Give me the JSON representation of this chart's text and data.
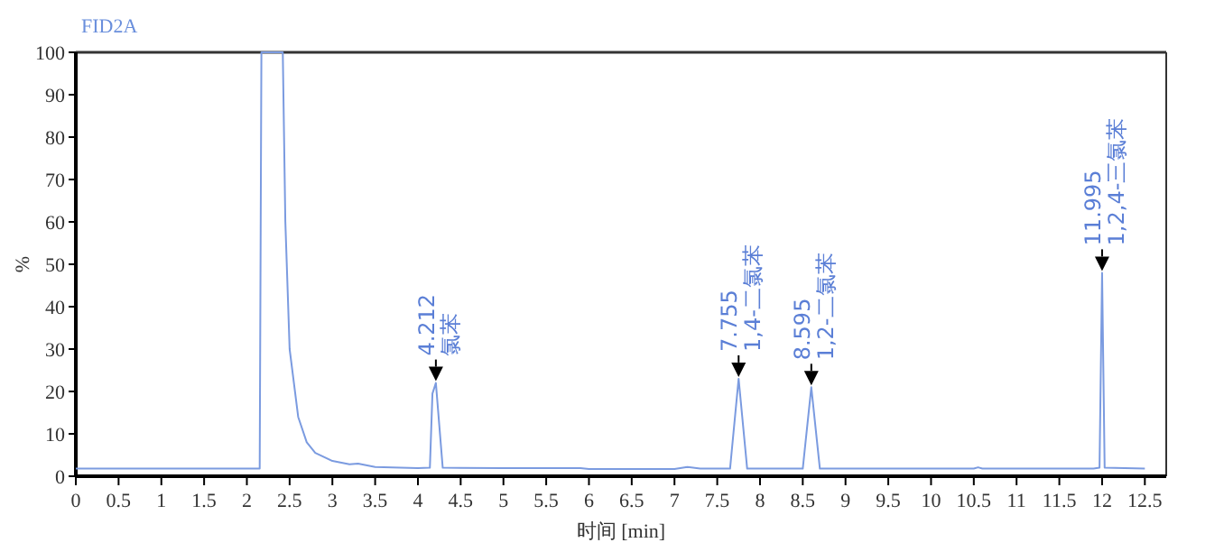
{
  "chart_data": {
    "type": "line",
    "title": "FID2A",
    "xlabel": "时间 [min]",
    "ylabel": "%",
    "xlim": [
      0,
      12.75
    ],
    "ylim": [
      0,
      100
    ],
    "xticks": [
      0,
      0.5,
      1,
      1.5,
      2,
      2.5,
      3,
      3.5,
      4,
      4.5,
      5,
      5.5,
      6,
      6.5,
      7,
      7.5,
      8,
      8.5,
      9,
      9.5,
      10,
      10.5,
      11,
      11.5,
      12,
      12.5
    ],
    "yticks": [
      0,
      10,
      20,
      30,
      40,
      50,
      60,
      70,
      80,
      90,
      100
    ],
    "x": [
      0,
      2.15,
      2.17,
      2.42,
      2.45,
      2.5,
      2.6,
      2.7,
      2.8,
      3.0,
      3.2,
      3.3,
      3.5,
      4.0,
      4.14,
      4.17,
      4.21,
      4.29,
      5.0,
      5.9,
      6.0,
      7.0,
      7.15,
      7.3,
      7.65,
      7.75,
      7.85,
      8.5,
      8.6,
      8.7,
      10.5,
      10.55,
      10.6,
      11.9,
      11.97,
      12.0,
      12.03,
      12.5
    ],
    "series": [
      {
        "color": "#7b9be0",
        "values": [
          1.8,
          1.8,
          100,
          100,
          60,
          30,
          14,
          8,
          5.5,
          3.6,
          2.8,
          3.0,
          2.2,
          1.9,
          2.0,
          19.5,
          22,
          2.0,
          1.9,
          1.9,
          1.7,
          1.7,
          2.2,
          1.8,
          1.8,
          23,
          1.8,
          1.8,
          21,
          1.8,
          1.8,
          2.1,
          1.8,
          1.8,
          2.0,
          48,
          2.0,
          1.8
        ]
      }
    ],
    "annotations": [
      {
        "text": "4.212\n氯苯",
        "x": 4.21,
        "y": 22
      },
      {
        "text": "7.755\n1,4-二氯苯",
        "x": 7.75,
        "y": 23
      },
      {
        "text": "8.595\n1,2-二氯苯",
        "x": 8.6,
        "y": 21
      },
      {
        "text": "11.995\n1,2,4-三氯苯",
        "x": 12.0,
        "y": 48
      }
    ]
  }
}
